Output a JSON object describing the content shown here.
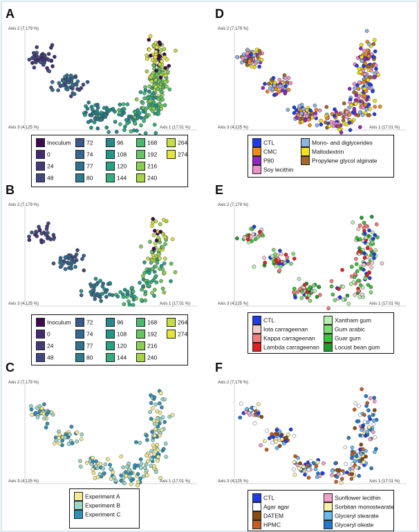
{
  "axis_labels": {
    "axis2": "Axis 2 (7.179 %)",
    "axis3": "Axis 3 (4.125 %)",
    "axis1": "Axis 1 (17.01 %)"
  },
  "palettes": {
    "time": {
      "Inoculum": "#3d0a4f",
      "0": "#442a6e",
      "24": "#453a78",
      "48": "#41487f",
      "72": "#3b5a89",
      "74": "#36678d",
      "77": "#31718e",
      "80": "#2d7d8e",
      "96": "#28898c",
      "108": "#24958a",
      "120": "#26a185",
      "144": "#33ae7c",
      "168": "#4bb870",
      "192": "#67c460",
      "216": "#88cf4f",
      "240": "#a6d544",
      "264": "#c7dd44",
      "274": "#e6e23e"
    },
    "experiment": {
      "Experiment A": "#f3ea8f",
      "Experiment B": "#9ad6c8",
      "Experiment C": "#2f8fb4"
    },
    "D": {
      "CTL": "#1f3be8",
      "CMC": "#f08a1a",
      "P80": "#9424c4",
      "Soy lecithin": "#f08fc8",
      "Mono- and diglycerides": "#8fb4e0",
      "Maltodextrin": "#f0e21c",
      "Propylene glycol alginate": "#a0682a"
    },
    "E": {
      "CTL": "#1f3be8",
      "Iota carrageenan": "#f6c9c9",
      "Kappa carrageenan": "#f27b7b",
      "Lambda carrageenan": "#e22020",
      "Xantham gum": "#b8f0b0",
      "Gum arabic": "#7ddc74",
      "Guar gum": "#3fbf3a",
      "Locust bean gum": "#1f9a2a"
    },
    "F": {
      "CTL": "#1f3be8",
      "Agar agar": "#ffffff",
      "DATEM": "#8a4a10",
      "HPMC": "#c85a20",
      "Sunflower lecithin": "#f3a0c8",
      "Sorbitan monostearate": "#f8f2a8",
      "Glyceryl stearate": "#6ab8ec",
      "Glyceryl oleate": "#2478c8"
    }
  },
  "chart_data": [
    {
      "panel": "A",
      "type": "scatter",
      "xlabel": "Axis 1 (17.01 %)",
      "ylabel": "Axis 2 (7.179 %)",
      "zlabel": "Axis 3 (4.125 %)",
      "color_by": "time",
      "legend": [
        [
          "Inoculum",
          "0",
          "24",
          "48"
        ],
        [
          "72",
          "74",
          "77",
          "80"
        ],
        [
          "96",
          "108",
          "120",
          "144"
        ],
        [
          "168",
          "192",
          "216",
          "240"
        ],
        [
          "264",
          "274"
        ]
      ]
    },
    {
      "panel": "B",
      "type": "scatter",
      "xlabel": "Axis 1 (17.01 %)",
      "ylabel": "Axis 2 (7.179 %)",
      "zlabel": "Axis 3 (4.125 %)",
      "color_by": "time",
      "legend": [
        [
          "Inoculum",
          "0",
          "24",
          "48"
        ],
        [
          "72",
          "74",
          "77",
          "80"
        ],
        [
          "96",
          "108",
          "120",
          "144"
        ],
        [
          "168",
          "192",
          "216",
          "240"
        ],
        [
          "264",
          "274"
        ]
      ]
    },
    {
      "panel": "C",
      "type": "scatter",
      "xlabel": "Axis 1 (17.01 %)",
      "ylabel": "Axis 2 (7.179 %)",
      "zlabel": "Axis 3 (4.125 %)",
      "color_by": "experiment",
      "legend": [
        [
          "Experiment A",
          "Experiment B",
          "Experiment C"
        ]
      ]
    },
    {
      "panel": "D",
      "type": "scatter",
      "xlabel": "Axis 1 (17.01 %)",
      "ylabel": "Axis 2 (7.179 %)",
      "zlabel": "Axis 3 (4.125 %)",
      "color_by": "additive",
      "legend": [
        [
          "CTL",
          "CMC",
          "P80",
          "Soy lecithin"
        ],
        [
          "Mono- and diglycerides",
          "Maltodextrin",
          "Propylene glycol alginate"
        ]
      ]
    },
    {
      "panel": "E",
      "type": "scatter",
      "xlabel": "Axis 1 (17.01 %)",
      "ylabel": "Axis 2 (7.179 %)",
      "zlabel": "Axis 3 (4.125 %)",
      "color_by": "additive",
      "legend": [
        [
          "CTL",
          "Iota carrageenan",
          "Kappa carrageenan",
          "Lambda carrageenan"
        ],
        [
          "Xantham gum",
          "Gum arabic",
          "Guar gum",
          "Locust bean gum"
        ]
      ]
    },
    {
      "panel": "F",
      "type": "scatter",
      "xlabel": "Axis 1 (17.01 %)",
      "ylabel": "Axis 2 (7.179 %)",
      "zlabel": "Axis 3 (4.125 %)",
      "color_by": "additive",
      "legend": [
        [
          "CTL",
          "Agar agar",
          "DATEM",
          "HPMC"
        ],
        [
          "Sunflower lecithin",
          "Sorbitan monostearate",
          "Glyceryl stearate",
          "Glyceryl oleate"
        ]
      ]
    }
  ]
}
